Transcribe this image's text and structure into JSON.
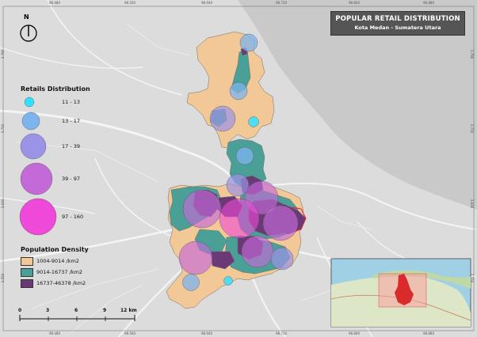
{
  "title": {
    "line1": "POPULAR RETAIL DISTRIBUTION",
    "line2": "Kota Medan - Sumatera Utara"
  },
  "north_arrow": {
    "label": "N"
  },
  "grid_ticks": {
    "top": [
      "98.480",
      "98.560",
      "98.640",
      "98.720",
      "98.800",
      "98.880"
    ],
    "bottom": [
      "98.480",
      "98.560",
      "98.640",
      "98.720",
      "98.800",
      "98.880"
    ],
    "left": [
      "3.790",
      "3.710",
      "3.630",
      "3.550"
    ],
    "right": [
      "3.790",
      "3.710",
      "3.630",
      "3.550"
    ]
  },
  "retails_legend": {
    "title": "Retails Distribution",
    "classes": [
      {
        "label": "11 - 13",
        "color": "#33e0ff"
      },
      {
        "label": "13 - 17",
        "color": "#7cb4ee"
      },
      {
        "label": "17 - 39",
        "color": "#9b93e6"
      },
      {
        "label": "39 - 97",
        "color": "#c46ad8"
      },
      {
        "label": "97 - 160",
        "color": "#ee49d8"
      }
    ]
  },
  "density_legend": {
    "title": "Population Density",
    "classes": [
      {
        "label": "1004-9014 /km2",
        "color": "#f2c896"
      },
      {
        "label": "9014-16737 /km2",
        "color": "#4aa096"
      },
      {
        "label": "16737-46378 /km2",
        "color": "#6b3a76"
      }
    ]
  },
  "scale_bar": {
    "labels": [
      "0",
      "3",
      "6",
      "9",
      "12 km"
    ]
  },
  "colors": {
    "background": "#d9d9d9",
    "sea": "#c9c9c9",
    "road": "#f4f4f4"
  }
}
